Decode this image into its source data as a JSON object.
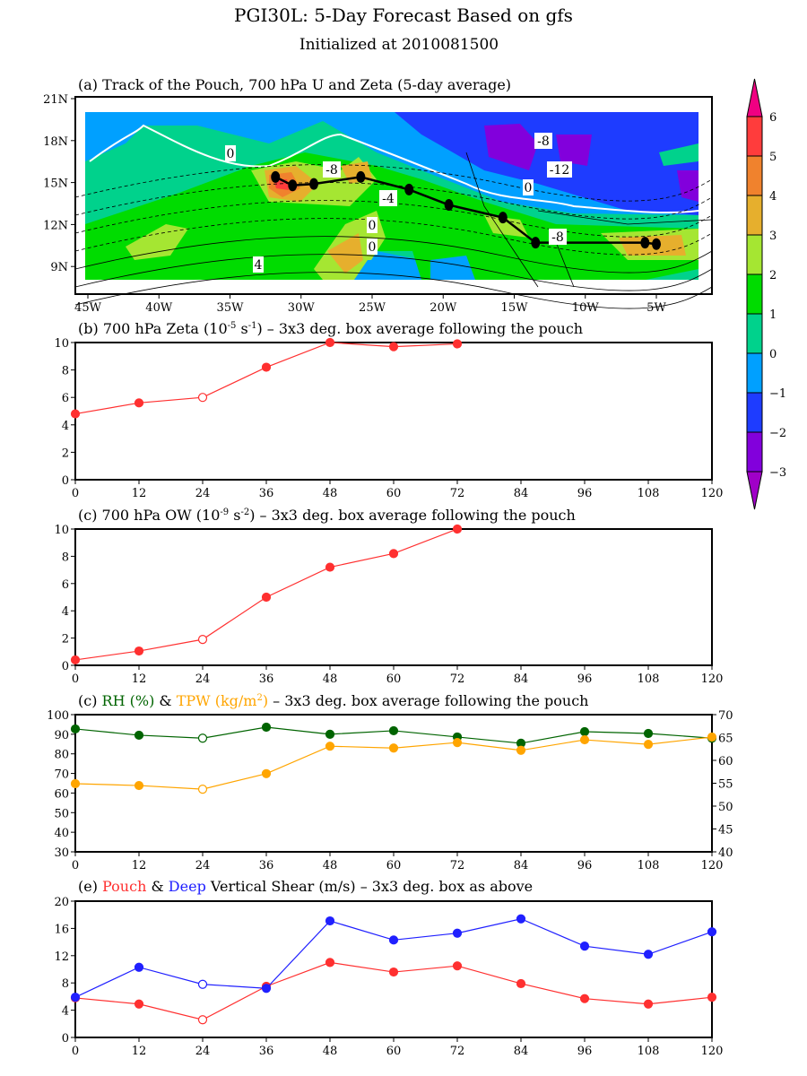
{
  "title": "PGI30L: 5-Day Forecast Based on gfs",
  "subtitle": "Initialized at 2010081500",
  "colors": {
    "rh": "#006400",
    "tpw": "#ffa500",
    "pouch": "#ff3030",
    "deep": "#2020ff",
    "zeta": "#ff3030",
    "ow": "#ff3030"
  },
  "chart_data": [
    {
      "type": "map",
      "title": "(a) Track of the Pouch, 700 hPa U and Zeta (5-day average)",
      "lon_ticks": [
        "45W",
        "40W",
        "35W",
        "30W",
        "25W",
        "20W",
        "15W",
        "10W",
        "5W"
      ],
      "lat_ticks": [
        "21N",
        "18N",
        "15N",
        "12N",
        "9N"
      ],
      "lon_range": [
        -46,
        -1
      ],
      "lat_range": [
        7.7,
        21
      ],
      "track": {
        "lon": [
          -31.8,
          -30.6,
          -29.1,
          -25.8,
          -22.4,
          -19.6,
          -15.8,
          -13.5,
          -5.8,
          -5.0
        ],
        "lat": [
          15.4,
          14.8,
          14.9,
          15.4,
          14.5,
          13.4,
          12.5,
          10.7,
          10.7,
          10.6
        ]
      },
      "contour_labels": [
        "0",
        "-8",
        "-4",
        "0",
        "0",
        "4",
        "-8",
        "-12",
        "0",
        "-8"
      ],
      "colorbar": {
        "levels": [
          "6",
          "5",
          "4",
          "3",
          "2",
          "1",
          "0",
          "-1",
          "-2",
          "-3"
        ],
        "colors": [
          "#ff3c3c",
          "#f0822d",
          "#e6af2d",
          "#a5e632",
          "#00dc00",
          "#00d28c",
          "#00a0ff",
          "#1e3cff",
          "#8200dc"
        ],
        "top_color": "#f00082",
        "bottom_color": "#a000c8"
      }
    },
    {
      "type": "line",
      "title_parts": [
        "(b) 700 hPa Zeta (10",
        "-5",
        " s",
        "-1",
        ") – 3x3 deg. box average following the pouch"
      ],
      "x": [
        0,
        12,
        24,
        36,
        48,
        60,
        72
      ],
      "series": [
        {
          "name": "Zeta",
          "values": [
            4.8,
            5.6,
            6.0,
            8.2,
            10.0,
            9.7,
            9.9
          ],
          "open": [
            24
          ]
        }
      ],
      "xlim": [
        0,
        120
      ],
      "ylim": [
        0,
        10
      ],
      "xticks": [
        "0",
        "12",
        "24",
        "36",
        "48",
        "60",
        "72",
        "84",
        "96",
        "108",
        "120"
      ],
      "yticks": [
        "0",
        "2",
        "4",
        "6",
        "8",
        "10"
      ]
    },
    {
      "type": "line",
      "title_parts": [
        "(c) 700 hPa OW (10",
        "-9",
        " s",
        "-2",
        ") – 3x3 deg. box average following the pouch"
      ],
      "x": [
        0,
        12,
        24,
        36,
        48,
        60,
        72
      ],
      "series": [
        {
          "name": "OW",
          "values": [
            0.4,
            1.05,
            1.9,
            5.0,
            7.2,
            8.2,
            10.0
          ],
          "open": [
            24
          ]
        }
      ],
      "xlim": [
        0,
        120
      ],
      "ylim": [
        0,
        10
      ],
      "xticks": [
        "0",
        "12",
        "24",
        "36",
        "48",
        "60",
        "72",
        "84",
        "96",
        "108",
        "120"
      ],
      "yticks": [
        "0",
        "2",
        "4",
        "6",
        "8",
        "10"
      ]
    },
    {
      "type": "line",
      "title_parts": [
        "(c) ",
        "RH (%)",
        " & ",
        "TPW (kg/m",
        "2",
        ")",
        " – 3x3 deg. box average following the pouch"
      ],
      "x": [
        0,
        12,
        24,
        36,
        48,
        60,
        72,
        84,
        96,
        108,
        120
      ],
      "series": [
        {
          "name": "RH",
          "axis": "left",
          "values": [
            92.7,
            89.5,
            88.0,
            93.6,
            90.0,
            91.8,
            88.6,
            85.4,
            91.3,
            90.4,
            88.0
          ],
          "open": [
            24
          ]
        },
        {
          "name": "TPW",
          "axis": "right",
          "values": [
            54.9,
            54.5,
            53.7,
            57.1,
            63.1,
            62.7,
            63.9,
            62.2,
            64.5,
            63.5,
            65.1
          ],
          "open": [
            24
          ]
        }
      ],
      "xlim": [
        0,
        120
      ],
      "ylim": [
        30,
        100
      ],
      "ylim_right": [
        40,
        70
      ],
      "xticks": [
        "0",
        "12",
        "24",
        "36",
        "48",
        "60",
        "72",
        "84",
        "96",
        "108",
        "120"
      ],
      "yticks": [
        "30",
        "40",
        "50",
        "60",
        "70",
        "80",
        "90",
        "100"
      ],
      "yticks_right": [
        "40",
        "45",
        "50",
        "55",
        "60",
        "65",
        "70"
      ]
    },
    {
      "type": "line",
      "title_parts": [
        "(e) ",
        "Pouch",
        " & ",
        "Deep",
        " Vertical Shear (m/s) – 3x3 deg. box as above"
      ],
      "x": [
        0,
        12,
        24,
        36,
        48,
        60,
        72,
        84,
        96,
        108,
        120
      ],
      "series": [
        {
          "name": "Pouch",
          "values": [
            5.8,
            4.9,
            2.6,
            7.5,
            11.0,
            9.6,
            10.5,
            7.9,
            5.7,
            4.9,
            5.9
          ],
          "open": [
            24
          ]
        },
        {
          "name": "Deep",
          "values": [
            5.9,
            10.3,
            7.8,
            7.2,
            17.1,
            14.3,
            15.3,
            17.4,
            13.4,
            12.2,
            15.5
          ],
          "open": [
            24
          ]
        }
      ],
      "xlim": [
        0,
        120
      ],
      "ylim": [
        0,
        20
      ],
      "xticks": [
        "0",
        "12",
        "24",
        "36",
        "48",
        "60",
        "72",
        "84",
        "96",
        "108",
        "120"
      ],
      "yticks": [
        "0",
        "4",
        "8",
        "12",
        "16",
        "20"
      ]
    }
  ]
}
